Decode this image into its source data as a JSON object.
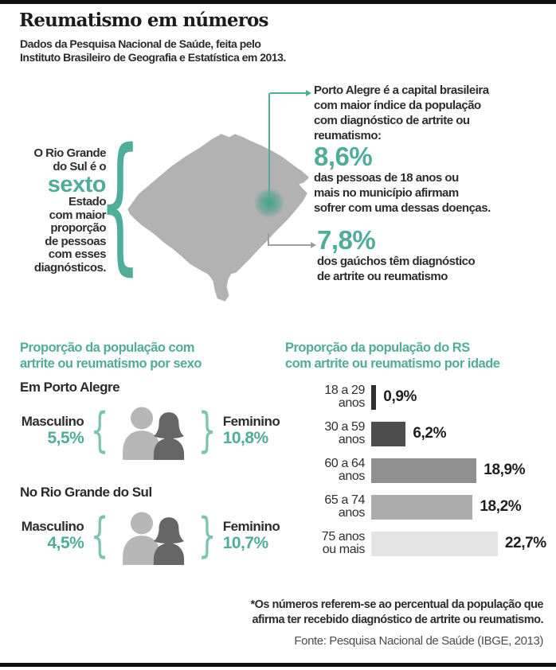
{
  "colors": {
    "teal": "#4FAD99",
    "teal-light": "#7CC3B2",
    "dark": "#2B2B2B",
    "map-gray": "#B2B2B2",
    "male-gray": "#B7B7B7",
    "female-gray": "#666666",
    "connector-gray": "#9E9E9E",
    "source-gray": "#4C4C4C"
  },
  "glyphs": {
    "brace_open": "{",
    "brace_close": "}"
  },
  "header": {
    "title": "Reumatismo em números",
    "subtitle_lines": [
      "Dados da Pesquisa Nacional de Saúde, feita pelo",
      "Instituto Brasileiro de Geografia e Estatística em 2013."
    ]
  },
  "state_callout": {
    "pre_lines": [
      "O Rio Grande",
      "do Sul é o"
    ],
    "highlight": "sexto",
    "post_lines": [
      "Estado",
      "com maior",
      "proporção",
      "de pessoas",
      "com esses",
      "diagnósticos."
    ]
  },
  "porto_alegre_callout": {
    "text_lines": [
      "Porto Alegre é a capital brasileira",
      "com maior índice da população",
      "com diagnóstico de artrite ou",
      "reumatismo:"
    ],
    "value": "8,6%",
    "detail_lines": [
      "das pessoas de 18 anos ou",
      "mais no município afirmam",
      "sofrer com uma dessas doenças."
    ]
  },
  "rs_callout": {
    "value": "7,8%",
    "detail_lines": [
      "dos gaúchos têm diagnóstico",
      "de artrite ou reumatismo"
    ]
  },
  "sex_section": {
    "heading_lines": [
      "Proporção da população com",
      "artrite ou reumatismo por sexo"
    ],
    "groups": [
      {
        "label": "Em Porto Alegre",
        "male_label": "Masculino",
        "male_value": "5,5%",
        "female_label": "Feminino",
        "female_value": "10,8%"
      },
      {
        "label": "No Rio Grande do Sul",
        "male_label": "Masculino",
        "male_value": "4,5%",
        "female_label": "Feminino",
        "female_value": "10,7%"
      }
    ]
  },
  "age_section": {
    "heading_lines": [
      "Proporção da população do RS",
      "com artrite ou reumatismo por idade"
    ]
  },
  "chart_data": {
    "type": "bar",
    "orientation": "horizontal",
    "title": "Proporção da população do RS com artrite ou reumatismo por idade",
    "categories": [
      "18 a 29 anos",
      "30 a 59 anos",
      "60 a 64 anos",
      "65 a 74 anos",
      "75 anos ou mais"
    ],
    "categories_lines": [
      [
        "18 a 29",
        "anos"
      ],
      [
        "30 a 59",
        "anos"
      ],
      [
        "60 a 64",
        "anos"
      ],
      [
        "65 a 74",
        "anos"
      ],
      [
        "75 anos",
        "ou mais"
      ]
    ],
    "values": [
      0.9,
      6.2,
      18.9,
      18.2,
      22.7
    ],
    "value_labels": [
      "0,9%",
      "6,2%",
      "18,9%",
      "18,2%",
      "22,7%"
    ],
    "bar_colors": [
      "#303030",
      "#4E4E4E",
      "#8F8F8F",
      "#ACACAC",
      "#E4E4E4"
    ],
    "xlabel": "",
    "ylabel": "",
    "xlim": [
      0,
      25
    ],
    "grid": false,
    "legend": false
  },
  "footer": {
    "note_lines": [
      "*Os números referem-se ao percentual da população que",
      "afirma ter recebido diagnóstico de artrite ou reumatismo."
    ],
    "source": "Fonte: Pesquisa Nacional de Saúde (IBGE, 2013)"
  }
}
